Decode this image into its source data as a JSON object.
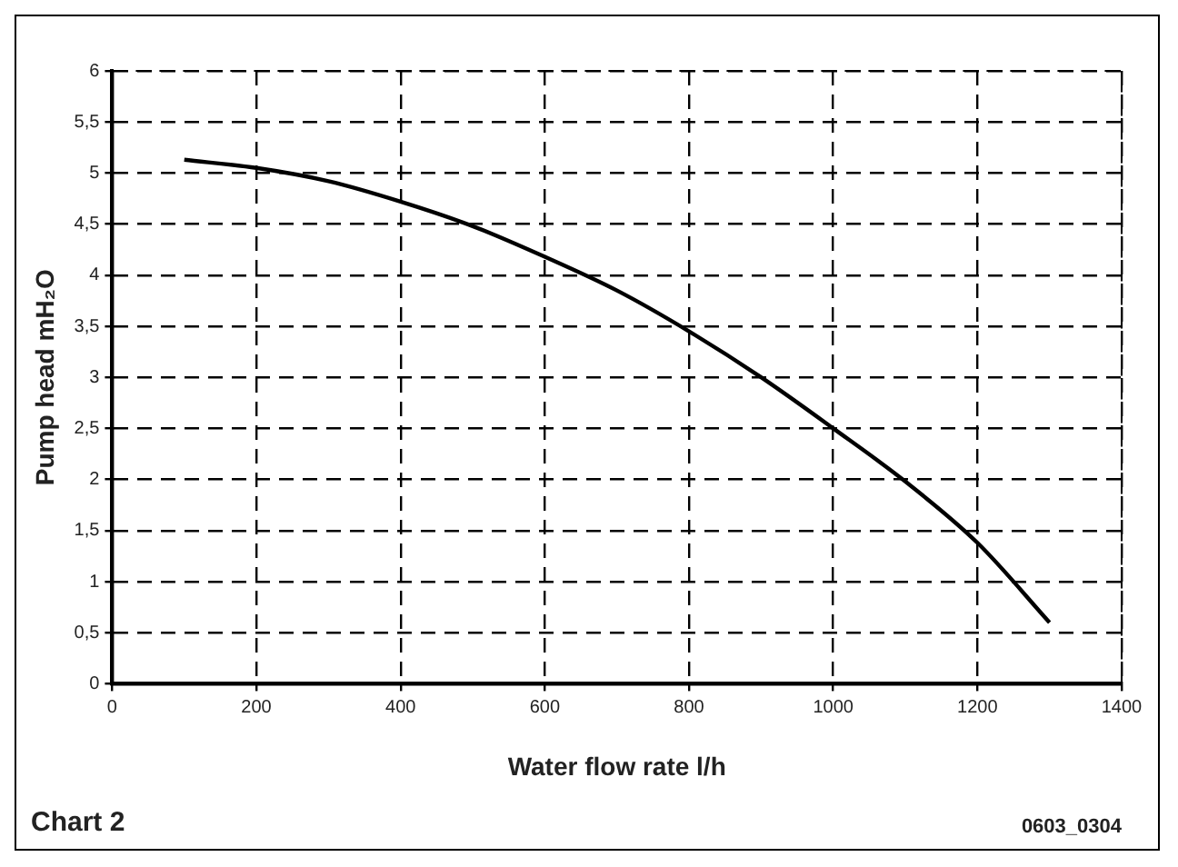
{
  "chart_data": {
    "type": "line",
    "xlabel": "Water flow rate l/h",
    "ylabel": "Pump head mH₂O",
    "x": [
      100,
      200,
      300,
      400,
      500,
      600,
      700,
      800,
      900,
      1000,
      1100,
      1200,
      1300
    ],
    "series": [
      {
        "color": "#000000",
        "values": [
          5.13,
          5.05,
          4.92,
          4.72,
          4.48,
          4.18,
          3.85,
          3.45,
          3.0,
          2.5,
          1.98,
          1.38,
          0.6
        ]
      }
    ],
    "xlim": [
      0,
      1400
    ],
    "xticks": [
      0,
      200,
      400,
      600,
      800,
      1000,
      1200,
      1400
    ],
    "ylim": [
      0,
      6
    ],
    "yticks": [
      0,
      {
        "value": 0.5,
        "label": "0,5"
      },
      1,
      {
        "value": 1.5,
        "label": "1,5"
      },
      2,
      {
        "value": 2.5,
        "label": "2,5"
      },
      3,
      {
        "value": 3.5,
        "label": "3,5"
      },
      4,
      {
        "value": 4.5,
        "label": "4,5"
      },
      5,
      {
        "value": 5.5,
        "label": "5,5"
      },
      6
    ],
    "grid": true,
    "legend": false,
    "marker": "none",
    "line_style": "solid",
    "annotations": [
      "Chart 2",
      "0603_0304"
    ]
  }
}
